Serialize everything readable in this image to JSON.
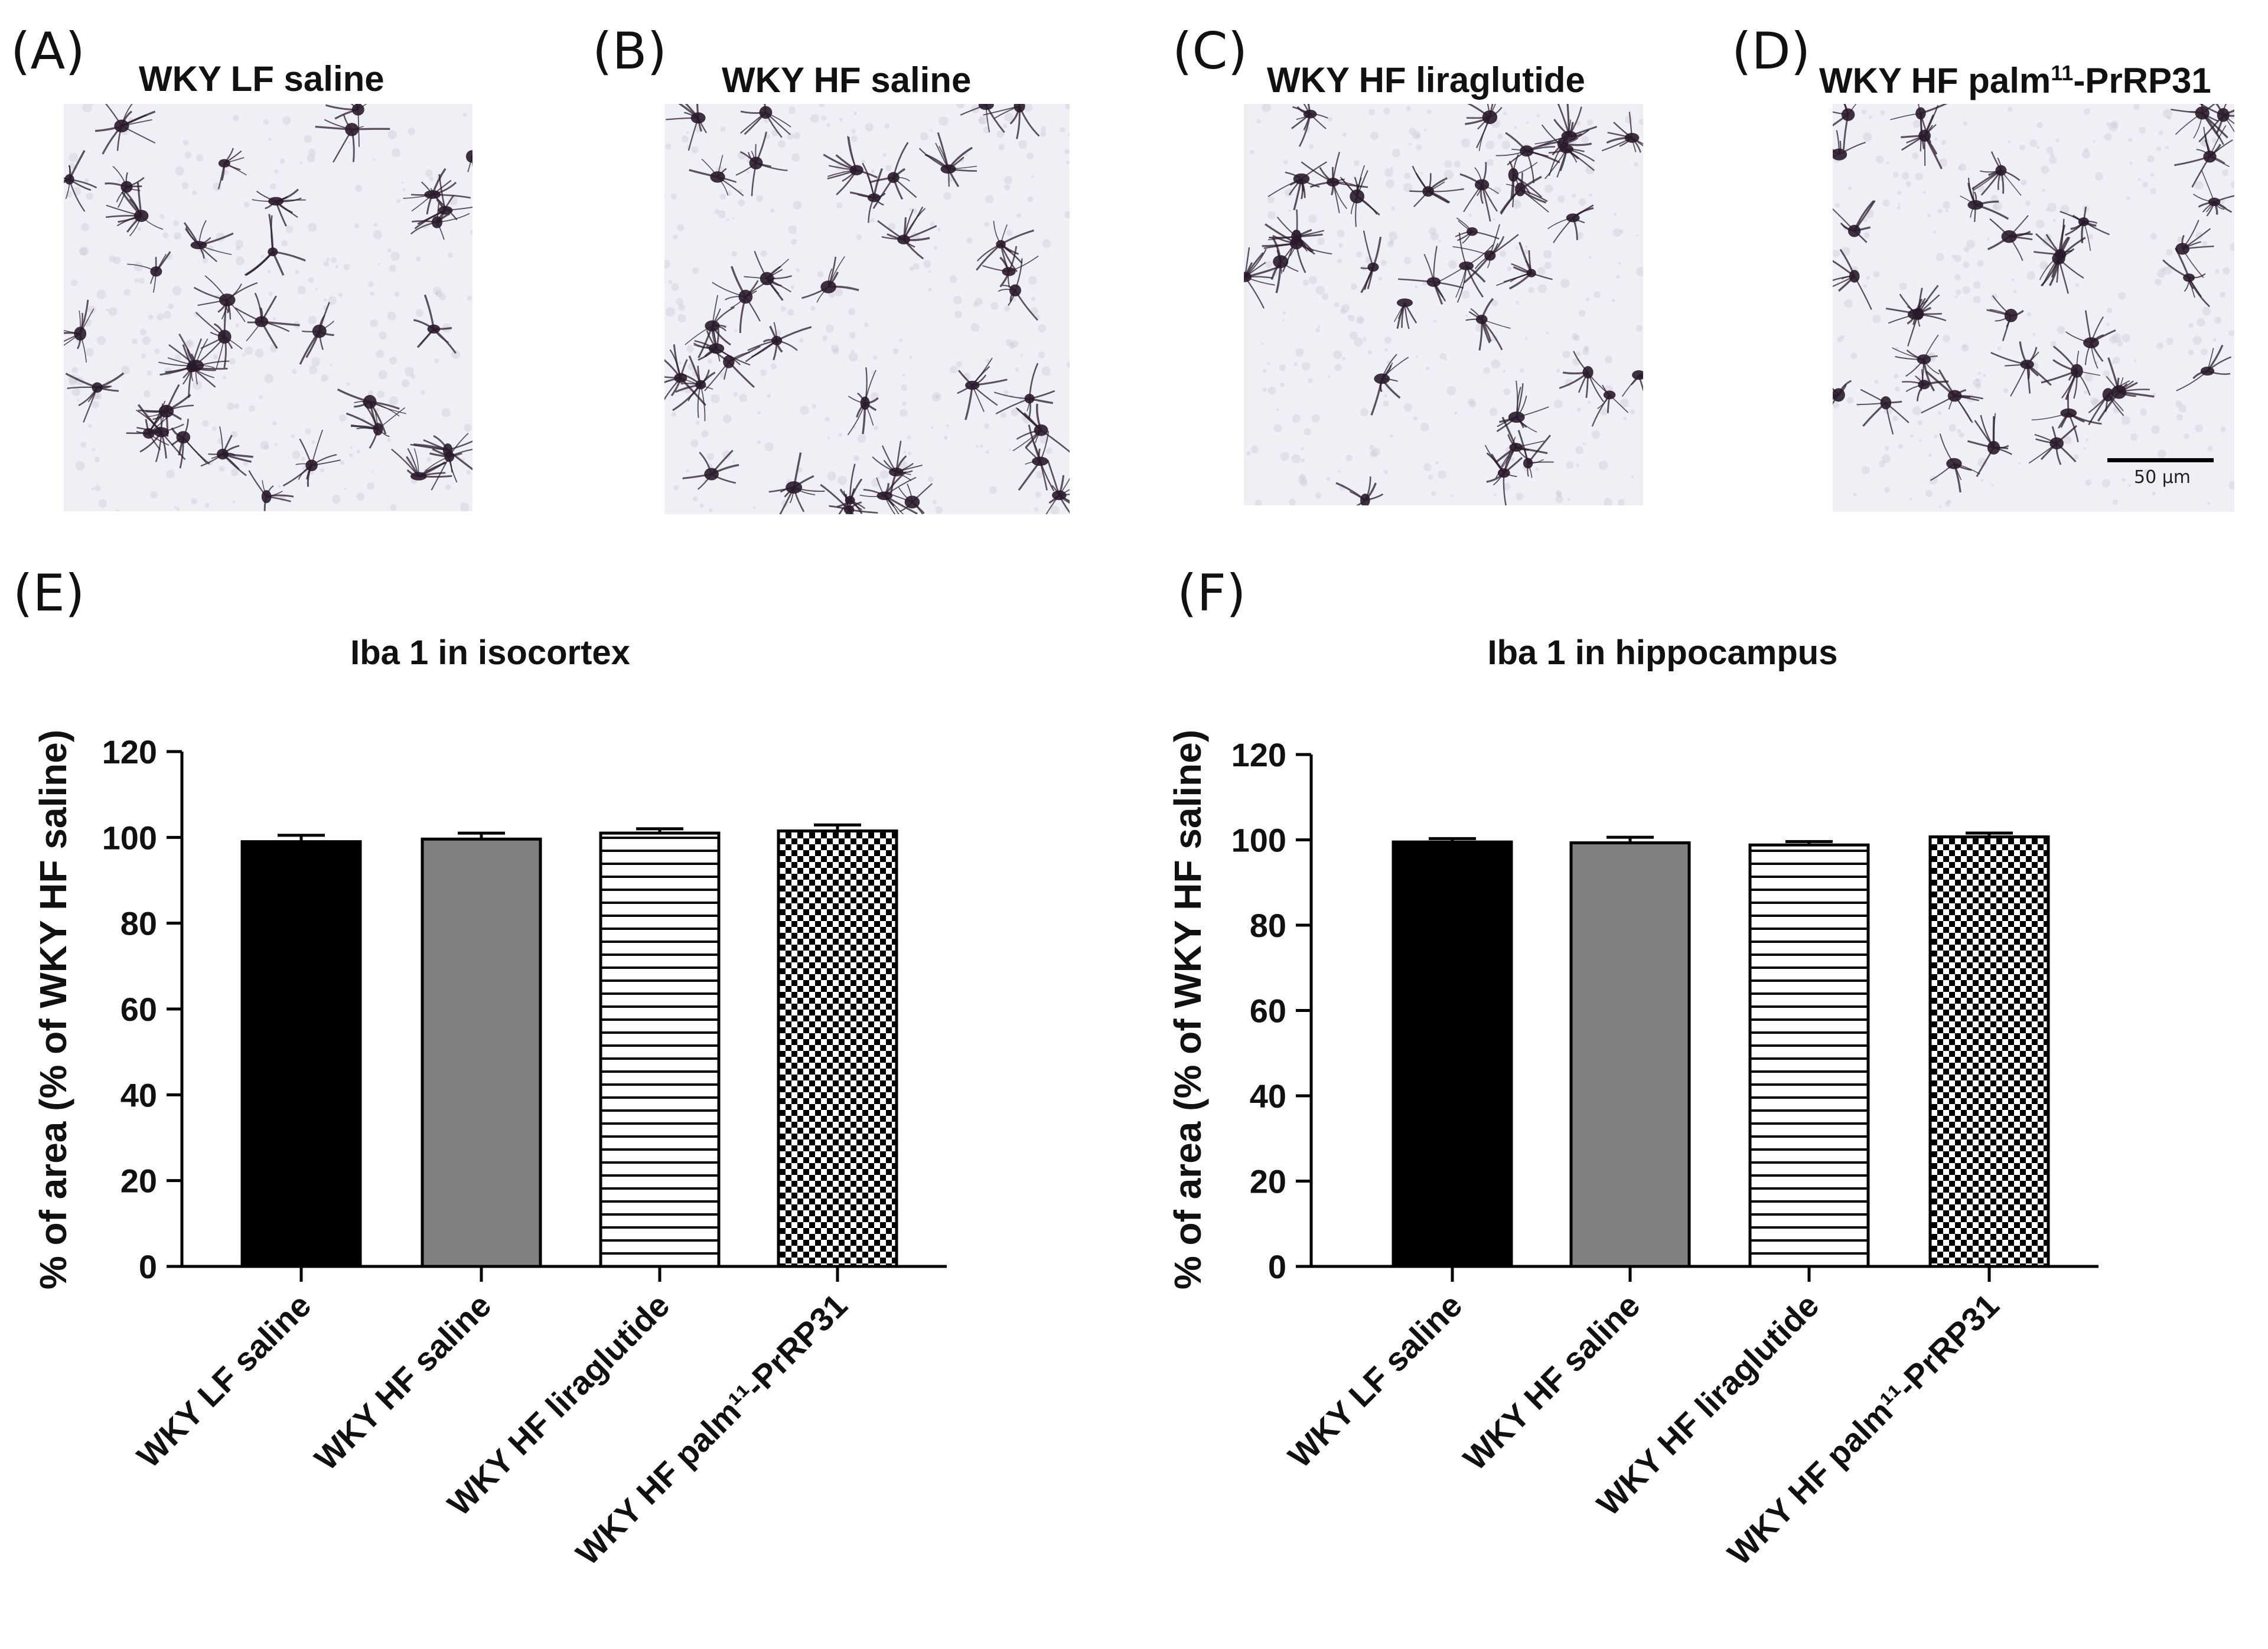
{
  "panels": {
    "A": {
      "letter": "(A)",
      "title": "WKY LF saline"
    },
    "B": {
      "letter": "(B)",
      "title": "WKY HF saline"
    },
    "C": {
      "letter": "(C)",
      "title": "WKY HF liraglutide"
    },
    "D": {
      "letter": "(D)",
      "title_main": "WKY HF palm",
      "title_sup": "11",
      "title_end": "-PrRP31",
      "scale_bar": "50 µm"
    },
    "E": {
      "letter": "(E)"
    },
    "F": {
      "letter": "(F)"
    }
  },
  "colors": {
    "stain": "#2a1a2e",
    "bg_micro": "#eef0f6",
    "bar_gray": "#808080",
    "bar_black": "#000000"
  },
  "chart_data": [
    {
      "type": "bar",
      "title": "Iba 1 in isocortex",
      "ylabel": "% of area (% of WKY HF saline)",
      "xlabel": "",
      "ylim": [
        0,
        120
      ],
      "yticks": [
        "0",
        "20",
        "40",
        "60",
        "80",
        "100",
        "120"
      ],
      "categories": [
        "WKY LF saline",
        "WKY HF saline",
        "WKY HF liraglutide",
        "WKY HF palm¹¹-PrRP31"
      ],
      "values": [
        99,
        99.6,
        101,
        101.5
      ],
      "errors": [
        1.5,
        1.4,
        1.0,
        1.4
      ],
      "fills": [
        "solid-black",
        "solid-gray",
        "horizontal-stripes",
        "checkerboard"
      ]
    },
    {
      "type": "bar",
      "title": "Iba 1 in hippocampus",
      "ylabel": "% of area (% of WKY HF saline)",
      "xlabel": "",
      "ylim": [
        0,
        120
      ],
      "yticks": [
        "0",
        "20",
        "40",
        "60",
        "80",
        "100",
        "120"
      ],
      "categories": [
        "WKY LF saline",
        "WKY HF saline",
        "WKY HF liraglutide",
        "WKY HF palm¹¹-PrRP31"
      ],
      "values": [
        99.5,
        99.3,
        98.8,
        100.7
      ],
      "errors": [
        0.8,
        1.3,
        0.8,
        0.9
      ],
      "fills": [
        "solid-black",
        "solid-gray",
        "horizontal-stripes",
        "checkerboard"
      ]
    }
  ]
}
